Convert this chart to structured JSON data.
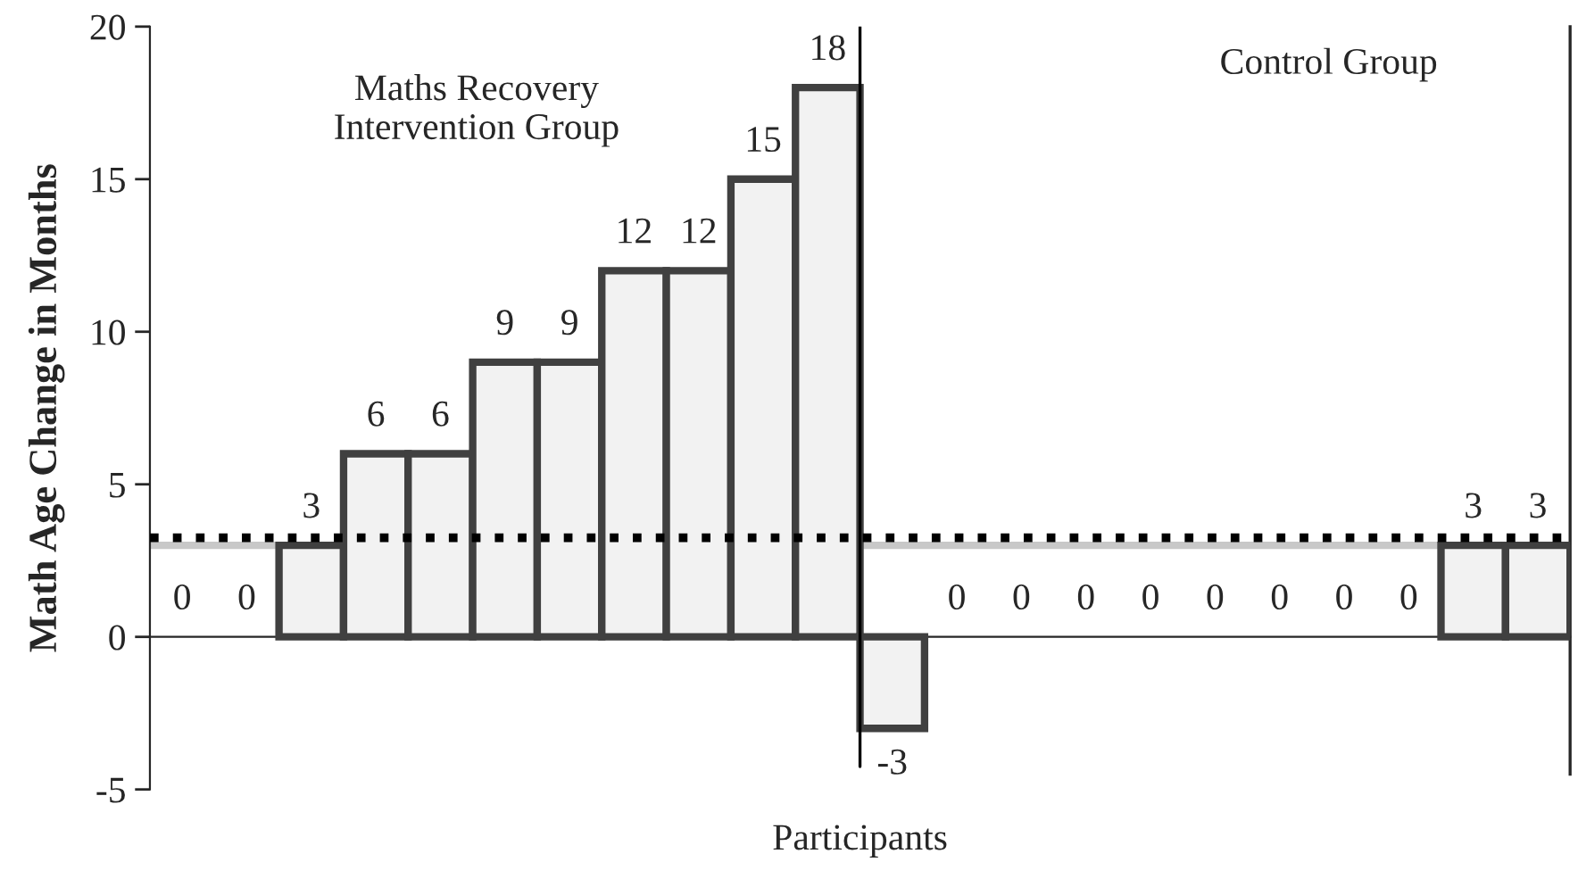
{
  "chart_data": {
    "type": "bar",
    "xlabel": "Participants",
    "ylabel": "Math Age Change in Months",
    "categories": [
      null,
      null,
      null,
      null,
      null,
      null,
      null,
      null,
      null,
      null,
      null,
      null,
      null,
      null,
      null,
      null,
      null,
      null,
      null,
      null,
      null,
      null
    ],
    "values": [
      0,
      0,
      3,
      6,
      6,
      9,
      9,
      12,
      12,
      15,
      18,
      -3,
      0,
      0,
      0,
      0,
      0,
      0,
      0,
      0,
      3,
      3
    ],
    "color": "#f2f2f2",
    "ylim": [
      -5,
      20
    ],
    "yticks": [
      -5,
      0,
      5,
      10,
      15,
      20
    ],
    "data_labels": true,
    "grid": false,
    "legend": false,
    "ref_lines": [
      {
        "axis": "y",
        "value": 3,
        "color": "#c8c8c8",
        "line_style": "solid"
      },
      {
        "axis": "y",
        "value": 3.25,
        "color": "#000000",
        "line_style": "dotted"
      }
    ],
    "annotations": [
      "Maths Recovery\nIntervention Group",
      "Control Group"
    ]
  }
}
